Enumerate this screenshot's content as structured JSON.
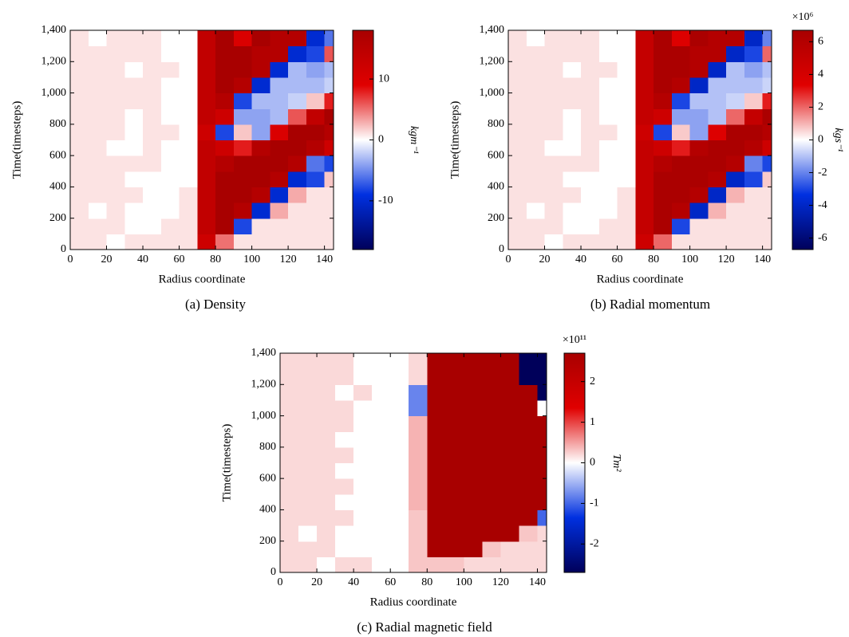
{
  "chart_data": [
    {
      "type": "heatmap",
      "caption": "(a) Density",
      "xlabel": "Radius coordinate",
      "ylabel": "Time(timesteps)",
      "colorbar_label": "kgm⁻¹",
      "colormap": [
        "#00005a",
        "#0030e0",
        "#ffffff",
        "#e00000",
        "#a80000"
      ],
      "xlim": [
        0,
        145
      ],
      "ylim": [
        0,
        1400
      ],
      "xticks": [
        0,
        20,
        40,
        60,
        80,
        100,
        120,
        140
      ],
      "yticks": [
        0,
        200,
        400,
        600,
        800,
        {
          "value": 1000,
          "label": "1,000"
        },
        {
          "value": 1200,
          "label": "1,200"
        },
        {
          "value": 1400,
          "label": "1,400"
        }
      ],
      "zlim": [
        -18,
        18
      ],
      "zticks": [
        -10,
        0,
        10
      ],
      "x_edges": [
        0,
        10,
        20,
        30,
        40,
        50,
        60,
        70,
        80,
        90,
        100,
        110,
        120,
        130,
        140,
        145
      ],
      "y_edges": [
        0,
        100,
        200,
        300,
        400,
        500,
        600,
        700,
        800,
        900,
        1000,
        1100,
        1200,
        1300,
        1400
      ],
      "z": [
        [
          1,
          1,
          0,
          1,
          1,
          1,
          1,
          12,
          5,
          1,
          1,
          1,
          1,
          1,
          1
        ],
        [
          1,
          1,
          1,
          0,
          0,
          1,
          1,
          14,
          18,
          -8,
          1,
          1,
          1,
          1,
          1
        ],
        [
          1,
          0,
          1,
          0,
          0,
          0,
          1,
          14,
          18,
          16,
          -10,
          3,
          1,
          1,
          1
        ],
        [
          1,
          1,
          1,
          1,
          0,
          0,
          1,
          14,
          18,
          18,
          16,
          -10,
          3,
          1,
          1
        ],
        [
          1,
          1,
          1,
          0,
          0,
          0,
          0,
          14,
          18,
          18,
          18,
          16,
          -10,
          -8,
          2
        ],
        [
          1,
          1,
          1,
          1,
          1,
          0,
          0,
          14,
          16,
          18,
          18,
          18,
          16,
          -6,
          -8
        ],
        [
          1,
          1,
          0,
          0,
          1,
          0,
          0,
          14,
          12,
          8,
          16,
          18,
          18,
          16,
          12
        ],
        [
          1,
          1,
          1,
          0,
          1,
          1,
          0,
          12,
          -8,
          2,
          -4,
          10,
          18,
          18,
          16
        ],
        [
          1,
          1,
          1,
          0,
          1,
          0,
          0,
          14,
          12,
          -4,
          -4,
          -3,
          6,
          14,
          18
        ],
        [
          1,
          1,
          1,
          1,
          1,
          0,
          0,
          14,
          16,
          -8,
          -3,
          -3,
          -2,
          2,
          8
        ],
        [
          1,
          1,
          1,
          1,
          1,
          0,
          0,
          14,
          18,
          16,
          -10,
          -3,
          -3,
          -3,
          -2
        ],
        [
          1,
          1,
          1,
          0,
          1,
          1,
          0,
          14,
          18,
          18,
          16,
          -10,
          -3,
          -4,
          -3
        ],
        [
          1,
          1,
          1,
          1,
          1,
          0,
          0,
          14,
          18,
          18,
          16,
          16,
          -10,
          -8,
          6
        ],
        [
          1,
          0,
          1,
          1,
          1,
          0,
          0,
          14,
          18,
          10,
          18,
          16,
          16,
          -10,
          -6
        ]
      ]
    },
    {
      "type": "heatmap",
      "caption": "(b) Radial momentum",
      "xlabel": "Radius coordinate",
      "ylabel": "Time(timesteps)",
      "colorbar_label": "kgs⁻¹",
      "colorbar_multiplier": "×10⁶",
      "colormap": [
        "#00005a",
        "#0030e0",
        "#ffffff",
        "#e00000",
        "#a80000"
      ],
      "xlim": [
        0,
        145
      ],
      "ylim": [
        0,
        1400
      ],
      "xticks": [
        0,
        20,
        40,
        60,
        80,
        100,
        120,
        140
      ],
      "yticks": [
        0,
        200,
        400,
        600,
        800,
        {
          "value": 1000,
          "label": "1,000"
        },
        {
          "value": 1200,
          "label": "1,200"
        },
        {
          "value": 1400,
          "label": "1,400"
        }
      ],
      "zlim": [
        -6.7,
        6.7
      ],
      "zticks": [
        -6,
        -4,
        -2,
        0,
        2,
        4,
        6
      ],
      "x_edges": [
        0,
        10,
        20,
        30,
        40,
        50,
        60,
        70,
        80,
        90,
        100,
        110,
        120,
        130,
        140,
        145
      ],
      "y_edges": [
        0,
        100,
        200,
        300,
        400,
        500,
        600,
        700,
        800,
        900,
        1000,
        1100,
        1200,
        1300,
        1400
      ],
      "z": [
        [
          0.4,
          0.4,
          0,
          0.4,
          0.4,
          0.4,
          0.4,
          4.5,
          2,
          0.4,
          0.4,
          0.4,
          0.4,
          0.4,
          0.4
        ],
        [
          0.4,
          0.4,
          0.4,
          0,
          0,
          0.4,
          0.4,
          5,
          6.5,
          -3,
          0.4,
          0.4,
          0.4,
          0.4,
          0.4
        ],
        [
          0.4,
          0,
          0.4,
          0,
          0,
          0,
          0.4,
          5,
          6.5,
          6,
          -4,
          1,
          0.4,
          0.4,
          0.4
        ],
        [
          0.4,
          0.4,
          0.4,
          0.4,
          0,
          0,
          0.4,
          5,
          6.5,
          6.5,
          6,
          -4,
          1,
          0.4,
          0.4
        ],
        [
          0.4,
          0.4,
          0.4,
          0,
          0,
          0,
          0,
          5,
          6.5,
          6.5,
          6.5,
          6,
          -4,
          -3,
          0.7
        ],
        [
          0.4,
          0.4,
          0.4,
          0.4,
          0.4,
          0,
          0,
          5,
          6,
          6.5,
          6.5,
          6.5,
          6,
          -2,
          -3
        ],
        [
          0.4,
          0.4,
          0,
          0,
          0.4,
          0,
          0,
          5,
          4.5,
          3,
          6,
          6.5,
          6.5,
          6,
          4.5
        ],
        [
          0.4,
          0.4,
          0.4,
          0,
          0.4,
          0.4,
          0,
          4.5,
          -3,
          0.7,
          -1.5,
          3.5,
          6.5,
          6.5,
          6
        ],
        [
          0.4,
          0.4,
          0.4,
          0,
          0.4,
          0,
          0,
          5,
          4.5,
          -1.5,
          -1.5,
          -1,
          2,
          5,
          6.5
        ],
        [
          0.4,
          0.4,
          0.4,
          0.4,
          0.4,
          0,
          0,
          5,
          6,
          -3,
          -1,
          -1,
          -0.7,
          0.7,
          3
        ],
        [
          0.4,
          0.4,
          0.4,
          0.4,
          0.4,
          0,
          0,
          5,
          6.5,
          6,
          -4,
          -1,
          -1,
          -1,
          -0.7
        ],
        [
          0.4,
          0.4,
          0.4,
          0,
          0.4,
          0.4,
          0,
          5,
          6.5,
          6.5,
          6,
          -4,
          -1,
          -1.5,
          -1
        ],
        [
          0.4,
          0.4,
          0.4,
          0.4,
          0.4,
          0,
          0,
          5,
          6.5,
          6.5,
          6,
          6,
          -4,
          -3,
          2
        ],
        [
          0.4,
          0,
          0.4,
          0.4,
          0.4,
          0,
          0,
          5,
          6.5,
          3.5,
          6.5,
          6,
          6,
          -4,
          -2
        ]
      ]
    },
    {
      "type": "heatmap",
      "caption": "(c) Radial magnetic field",
      "xlabel": "Radius coordinate",
      "ylabel": "Time(timesteps)",
      "colorbar_label": "Tm²",
      "colorbar_multiplier": "×10¹¹",
      "colormap": [
        "#00005a",
        "#0030e0",
        "#ffffff",
        "#e00000",
        "#a80000"
      ],
      "xlim": [
        0,
        145
      ],
      "ylim": [
        0,
        1400
      ],
      "xticks": [
        0,
        20,
        40,
        60,
        80,
        100,
        120,
        140
      ],
      "yticks": [
        0,
        200,
        400,
        600,
        800,
        {
          "value": 1000,
          "label": "1,000"
        },
        {
          "value": 1200,
          "label": "1,200"
        },
        {
          "value": 1400,
          "label": "1,400"
        }
      ],
      "zlim": [
        -2.7,
        2.7
      ],
      "zticks": [
        -2,
        -1,
        0,
        1,
        2
      ],
      "x_edges": [
        0,
        10,
        20,
        30,
        40,
        50,
        60,
        70,
        80,
        90,
        100,
        110,
        120,
        130,
        140,
        145
      ],
      "y_edges": [
        0,
        100,
        200,
        300,
        400,
        500,
        600,
        700,
        800,
        900,
        1000,
        1100,
        1200,
        1300,
        1400
      ],
      "z": [
        [
          0.2,
          0.2,
          0,
          0.2,
          0.2,
          0,
          0,
          0.3,
          0.3,
          0.3,
          0.2,
          0.2,
          0.2,
          0.2,
          0.2
        ],
        [
          0.2,
          0.2,
          0.2,
          0,
          0,
          0,
          0,
          0.3,
          2.7,
          2.7,
          2.7,
          0.3,
          0.2,
          0.2,
          0.2
        ],
        [
          0.2,
          0,
          0.2,
          0,
          0,
          0,
          0,
          0.3,
          2.7,
          2.7,
          2.7,
          2.7,
          2.7,
          0.3,
          0.2
        ],
        [
          0.2,
          0.2,
          0.2,
          0.2,
          0,
          0,
          0,
          0.3,
          2.7,
          2.7,
          2.7,
          2.7,
          2.7,
          2.7,
          -1
        ],
        [
          0.2,
          0.2,
          0.2,
          0,
          0,
          0,
          0,
          0.4,
          2.7,
          2.7,
          2.7,
          2.7,
          2.7,
          2.7,
          2.7
        ],
        [
          0.2,
          0.2,
          0.2,
          0.2,
          0,
          0,
          0,
          0.4,
          2.7,
          2.7,
          2.7,
          2.7,
          2.7,
          2.7,
          2.7
        ],
        [
          0.2,
          0.2,
          0.2,
          0,
          0,
          0,
          0,
          0.4,
          2.7,
          2.7,
          2.7,
          2.7,
          2.7,
          2.7,
          2.7
        ],
        [
          0.2,
          0.2,
          0.2,
          0.2,
          0,
          0,
          0,
          0.4,
          2.7,
          2.7,
          2.7,
          2.7,
          2.7,
          2.7,
          2.7
        ],
        [
          0.2,
          0.2,
          0.2,
          0,
          0,
          0,
          0,
          0.4,
          2.7,
          2.7,
          2.7,
          2.7,
          2.7,
          2.7,
          2.7
        ],
        [
          0.2,
          0.2,
          0.2,
          0.2,
          0,
          0,
          0,
          0.4,
          2.7,
          2.7,
          2.7,
          2.7,
          2.7,
          2.7,
          2.7
        ],
        [
          0.2,
          0.2,
          0.2,
          0.2,
          0,
          0,
          0,
          -0.8,
          2.7,
          2.7,
          2.7,
          2.7,
          2.7,
          2.7,
          0
        ],
        [
          0.2,
          0.2,
          0.2,
          0,
          0.2,
          0,
          0,
          -0.8,
          2.7,
          2.7,
          2.7,
          2.7,
          2.7,
          2.7,
          -2.7
        ],
        [
          0.2,
          0.2,
          0.2,
          0.2,
          0,
          0,
          0,
          0.2,
          2.7,
          2.7,
          2.7,
          2.7,
          2.7,
          -2.7,
          -2.7
        ],
        [
          0.2,
          0.2,
          0.2,
          0.2,
          0,
          0,
          0,
          0.2,
          2.7,
          2.7,
          2.7,
          2.7,
          2.7,
          -2.7,
          -2.7
        ]
      ]
    }
  ]
}
